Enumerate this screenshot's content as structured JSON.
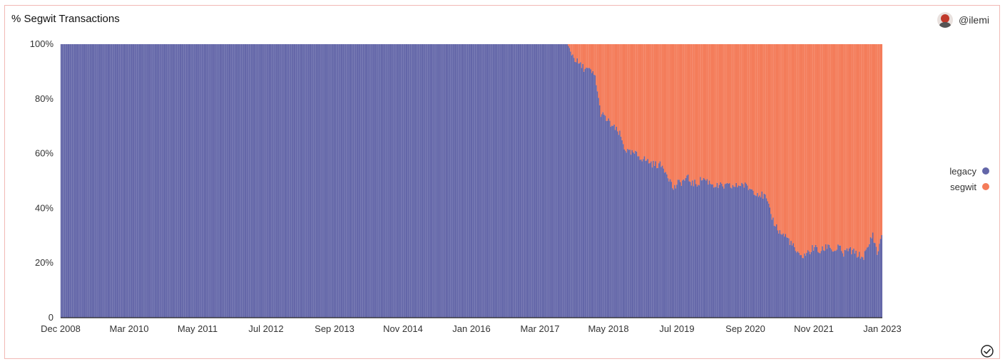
{
  "header": {
    "title": "% Segwit Transactions",
    "author": "@ilemi"
  },
  "icons": {
    "avatar": "avatar-image",
    "status": "check-circle-icon"
  },
  "colors": {
    "legacy": "#6366a8",
    "segwit": "#f47c5a",
    "border": "#f2b8b4"
  },
  "chart_data": {
    "type": "bar",
    "stacked": true,
    "normalized": true,
    "title": "% Segwit Transactions",
    "x_axis": {
      "type": "date",
      "range": [
        "2008-12",
        "2023-01"
      ],
      "tick_labels": [
        "Dec 2008",
        "Mar 2010",
        "May 2011",
        "Jul 2012",
        "Sep 2013",
        "Nov 2014",
        "Jan 2016",
        "Mar 2017",
        "May 2018",
        "Jul 2019",
        "Sep 2020",
        "Nov 2021",
        "Jan 2023"
      ]
    },
    "y_axis": {
      "range": [
        0,
        100
      ],
      "ticks": [
        0,
        20,
        40,
        60,
        80,
        100
      ],
      "tick_labels": [
        "0",
        "20%",
        "40%",
        "60%",
        "80%",
        "100%"
      ]
    },
    "legend": {
      "placement": "right",
      "entries": [
        "legacy",
        "segwit"
      ]
    },
    "series": [
      {
        "name": "legacy",
        "color": "#6366a8",
        "points": [
          [
            "2008-12",
            100
          ],
          [
            "2017-08",
            100
          ],
          [
            "2017-09",
            97
          ],
          [
            "2017-10",
            94
          ],
          [
            "2017-11",
            92
          ],
          [
            "2017-12",
            91
          ],
          [
            "2018-01",
            90
          ],
          [
            "2018-02",
            88
          ],
          [
            "2018-03",
            75
          ],
          [
            "2018-04",
            73
          ],
          [
            "2018-05",
            71
          ],
          [
            "2018-06",
            69
          ],
          [
            "2018-07",
            67
          ],
          [
            "2018-08",
            62
          ],
          [
            "2018-09",
            60
          ],
          [
            "2018-10",
            60
          ],
          [
            "2018-11",
            59
          ],
          [
            "2018-12",
            58
          ],
          [
            "2019-01",
            57
          ],
          [
            "2019-02",
            56
          ],
          [
            "2019-03",
            56
          ],
          [
            "2019-04",
            55
          ],
          [
            "2019-05",
            52
          ],
          [
            "2019-06",
            47
          ],
          [
            "2019-07",
            49
          ],
          [
            "2019-08",
            50
          ],
          [
            "2019-09",
            51
          ],
          [
            "2019-10",
            49
          ],
          [
            "2019-11",
            49
          ],
          [
            "2019-12",
            51
          ],
          [
            "2020-01",
            50
          ],
          [
            "2020-02",
            49
          ],
          [
            "2020-03",
            48
          ],
          [
            "2020-04",
            48
          ],
          [
            "2020-05",
            48
          ],
          [
            "2020-06",
            48
          ],
          [
            "2020-07",
            48
          ],
          [
            "2020-08",
            49
          ],
          [
            "2020-09",
            48
          ],
          [
            "2020-10",
            47
          ],
          [
            "2020-11",
            46
          ],
          [
            "2020-12",
            45
          ],
          [
            "2021-01",
            44
          ],
          [
            "2021-02",
            38
          ],
          [
            "2021-03",
            34
          ],
          [
            "2021-04",
            31
          ],
          [
            "2021-05",
            30
          ],
          [
            "2021-06",
            28
          ],
          [
            "2021-07",
            25
          ],
          [
            "2021-08",
            22
          ],
          [
            "2021-09",
            23
          ],
          [
            "2021-10",
            24
          ],
          [
            "2021-11",
            26
          ],
          [
            "2021-12",
            24
          ],
          [
            "2022-01",
            25
          ],
          [
            "2022-02",
            27
          ],
          [
            "2022-03",
            24
          ],
          [
            "2022-04",
            26
          ],
          [
            "2022-05",
            23
          ],
          [
            "2022-06",
            25
          ],
          [
            "2022-07",
            24
          ],
          [
            "2022-08",
            23
          ],
          [
            "2022-09",
            22
          ],
          [
            "2022-10",
            25
          ],
          [
            "2022-11",
            31
          ],
          [
            "2022-12",
            23
          ],
          [
            "2023-01",
            32
          ]
        ]
      },
      {
        "name": "segwit",
        "color": "#f47c5a",
        "note_complement": "100 - legacy"
      }
    ]
  }
}
